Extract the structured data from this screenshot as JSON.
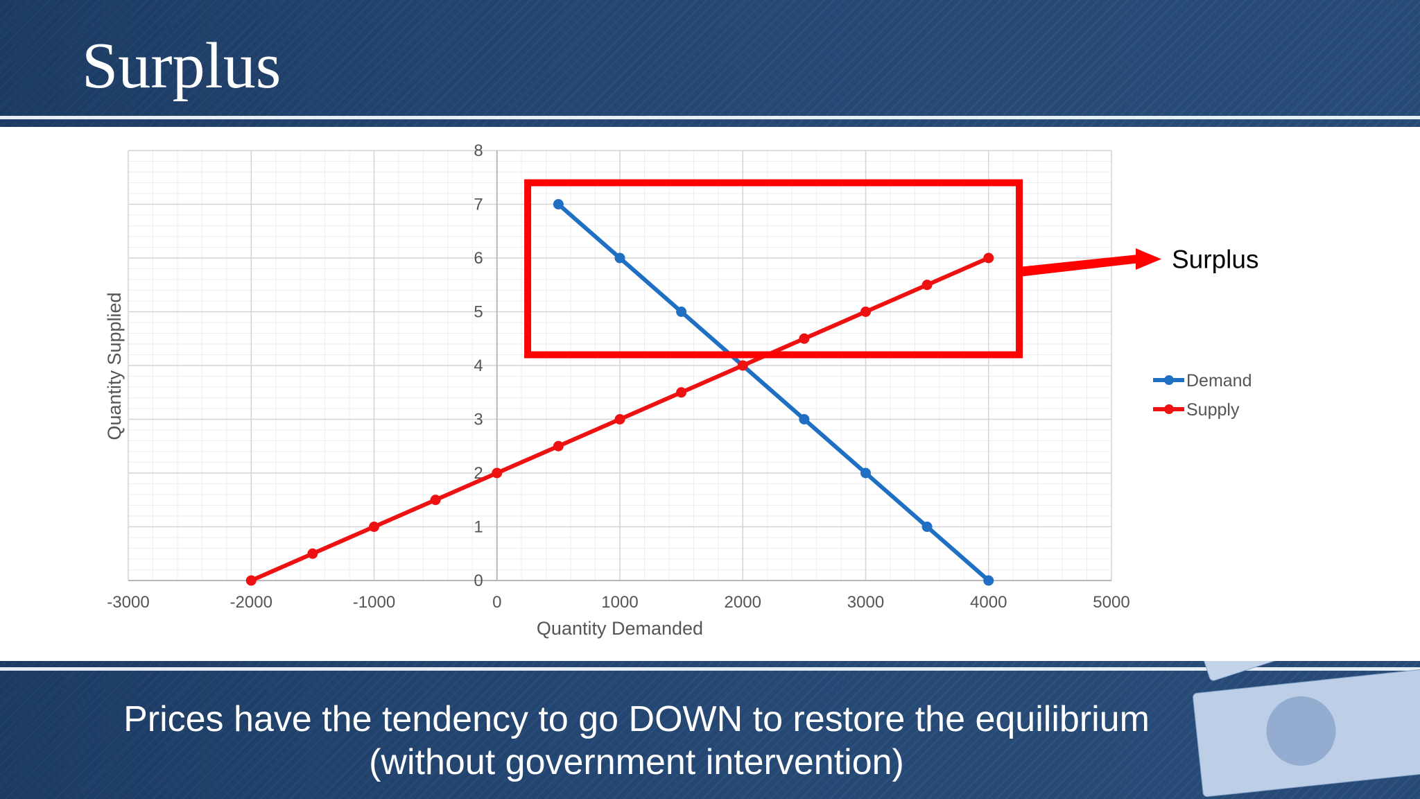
{
  "slide": {
    "title": "Surplus",
    "caption_line1": "Prices have the tendency to go DOWN to restore the equilibrium",
    "caption_line2": "(without government intervention)"
  },
  "annotation": {
    "label": "Surplus",
    "box_color": "#ff0000",
    "box": {
      "x_from": 250,
      "x_to": 4250,
      "y_from": 4.2,
      "y_to": 7.4
    }
  },
  "colors": {
    "background_dark": "#1f3d66",
    "demand": "#1f6fc3",
    "supply": "#ee1111"
  },
  "chart_data": {
    "type": "scatter",
    "title": "",
    "xlabel": "Quantity Demanded",
    "ylabel": "Quantity Supplied",
    "xlim": [
      -3000,
      5000
    ],
    "ylim": [
      0,
      8
    ],
    "x_ticks": [
      -3000,
      -2000,
      -1000,
      0,
      1000,
      2000,
      3000,
      4000,
      5000
    ],
    "y_ticks": [
      0,
      1,
      2,
      3,
      4,
      5,
      6,
      7,
      8
    ],
    "grid": true,
    "legend_position": "right",
    "series": [
      {
        "name": "Demand",
        "color": "#1f6fc3",
        "points": [
          [
            500,
            7
          ],
          [
            1000,
            6
          ],
          [
            1500,
            5
          ],
          [
            2500,
            3
          ],
          [
            3000,
            2
          ],
          [
            3500,
            1
          ],
          [
            4000,
            0
          ]
        ]
      },
      {
        "name": "Supply",
        "color": "#ee1111",
        "points": [
          [
            -2000,
            0
          ],
          [
            -1500,
            0.5
          ],
          [
            -1000,
            1
          ],
          [
            -500,
            1.5
          ],
          [
            0,
            2
          ],
          [
            500,
            2.5
          ],
          [
            1000,
            3
          ],
          [
            1500,
            3.5
          ],
          [
            2000,
            4
          ],
          [
            2500,
            4.5
          ],
          [
            3000,
            5
          ],
          [
            3500,
            5.5
          ],
          [
            4000,
            6
          ]
        ]
      }
    ]
  }
}
